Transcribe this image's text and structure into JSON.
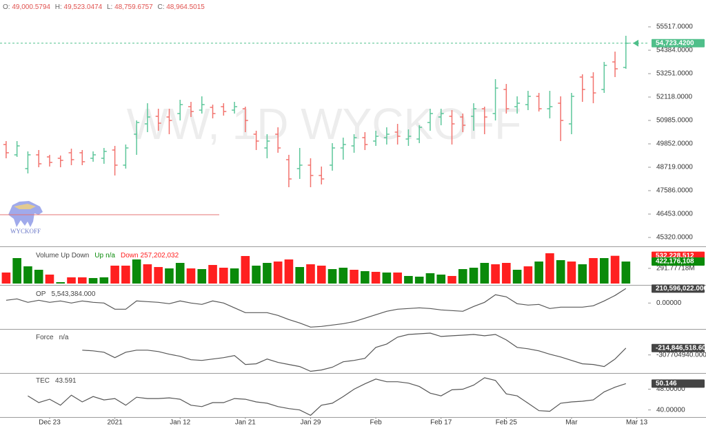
{
  "chart_data": [
    {
      "type": "ohlc",
      "header": [
        {
          "key": "O:",
          "value": {
            "value": 49000.5794,
            "label": "49,000.5794"
          }
        },
        {
          "key": "H:",
          "value": {
            "value": 49523.0474,
            "label": "49,523.0474"
          }
        },
        {
          "key": "L:",
          "value": {
            "value": 48759.6757,
            "label": "48,759.6757"
          }
        },
        {
          "key": "C:",
          "value": {
            "value": 48964.5015,
            "label": "48,964.5015"
          }
        }
      ],
      "watermark": "WW, 1D WYCKOFF",
      "logo_text": "WYCKOFF",
      "up_color": "#5cc69a",
      "down_color": "#f2726d",
      "xlim": [
        -0.564,
        59.04
      ],
      "ylim": [
        44988,
        56816
      ],
      "yticks": [
        {
          "value": 55517,
          "label": "55517.0000"
        },
        {
          "value": 54384,
          "label": "54384.0000"
        },
        {
          "value": 53251,
          "label": "53251.0000"
        },
        {
          "value": 52118,
          "label": "52118.0000"
        },
        {
          "value": 50985,
          "label": "50985.0000"
        },
        {
          "value": 49852,
          "label": "49852.0000"
        },
        {
          "value": 48719,
          "label": "48719.0000"
        },
        {
          "value": 47586,
          "label": "47586.0000"
        },
        {
          "value": 46453,
          "label": "46453.0000"
        },
        {
          "value": 45320,
          "label": "45320.0000"
        }
      ],
      "hlines": [
        {
          "value": 46420,
          "color": "#e57373"
        }
      ],
      "badges": [
        {
          "value": 54723.42,
          "label": "54,723.4200",
          "color": "#4fbf8a"
        }
      ],
      "open": [
        49819,
        49320,
        48653,
        49320,
        49220,
        49153,
        49420,
        49420,
        49153,
        49153,
        49553,
        48820,
        50319,
        50819,
        51185,
        51152,
        51319,
        51652,
        51485,
        51619,
        51652,
        51485,
        51552,
        50319,
        49653,
        50319,
        49086,
        48653,
        48820,
        48320,
        48820,
        49653,
        49753,
        50153,
        49986,
        50153,
        50419,
        50086,
        50086,
        50886,
        51152,
        51185,
        51152,
        51185,
        51552,
        51319,
        52485,
        51652,
        51752,
        52152,
        51552,
        51819,
        50819,
        53085,
        53085,
        52485,
        53818,
        53551
      ],
      "high": [
        49986,
        49986,
        49486,
        49553,
        49320,
        49286,
        49620,
        49553,
        49486,
        49653,
        49753,
        49819,
        50986,
        51819,
        51552,
        51552,
        51985,
        51885,
        52152,
        51752,
        51819,
        51885,
        51652,
        50486,
        50319,
        50653,
        49320,
        49653,
        49153,
        48753,
        49886,
        50153,
        50319,
        50419,
        50486,
        50653,
        50819,
        50552,
        50752,
        51552,
        51552,
        51485,
        51319,
        51819,
        51652,
        52985,
        52751,
        52152,
        52418,
        52318,
        52418,
        52152,
        52318,
        53218,
        53318,
        53818,
        54318,
        55084
      ],
      "low": [
        49153,
        49220,
        48420,
        48720,
        48753,
        48720,
        48820,
        48820,
        48986,
        48886,
        48320,
        48653,
        49320,
        50419,
        50486,
        50319,
        50985,
        51152,
        51319,
        51085,
        51219,
        51319,
        50419,
        49553,
        49153,
        49420,
        47753,
        48153,
        47753,
        47887,
        48553,
        49086,
        49420,
        49553,
        49753,
        49819,
        49819,
        49753,
        49886,
        50486,
        50752,
        49819,
        50419,
        50486,
        50319,
        50985,
        51319,
        51319,
        51485,
        51419,
        51085,
        49986,
        50319,
        51885,
        51819,
        52318,
        53085,
        53485
      ],
      "close": [
        49420,
        49753,
        49320,
        48886,
        48953,
        49053,
        49086,
        48986,
        49320,
        49486,
        48820,
        49653,
        50886,
        51152,
        50852,
        50985,
        51752,
        51419,
        51752,
        51319,
        51419,
        51652,
        50985,
        49986,
        49986,
        49653,
        48153,
        48820,
        48320,
        48153,
        49653,
        49819,
        50153,
        49819,
        50219,
        50319,
        50219,
        50219,
        50653,
        51319,
        51319,
        50819,
        50752,
        51552,
        51152,
        52552,
        51552,
        51819,
        52152,
        51552,
        51652,
        50985,
        52152,
        52485,
        52318,
        53651,
        53485,
        54723.42
      ]
    },
    {
      "type": "bar",
      "title": "Volume Up Down",
      "xlim": [
        -0.564,
        59.04
      ],
      "ylim": [
        0,
        660000000
      ],
      "yticks": [
        {
          "value": 291777180,
          "label": "291.77718M"
        }
      ],
      "badges": [
        {
          "value": 532228512,
          "label": "532,228,512",
          "color": "#ff2020"
        },
        {
          "value": 422176108,
          "label": "422,176,108",
          "color": "#0a8a0a"
        }
      ],
      "series": [
        {
          "name": "Up",
          "legend_value": "n/a",
          "color": "#0a8a0a",
          "values": [
            null,
            488400000,
            330000000,
            264000000,
            null,
            26400000,
            null,
            null,
            105600000,
            118800000,
            null,
            null,
            462000000,
            null,
            null,
            290400000,
            396000000,
            null,
            277200000,
            null,
            null,
            290400000,
            null,
            343200000,
            396000000,
            null,
            null,
            316800000,
            null,
            null,
            277200000,
            303600000,
            null,
            237600000,
            null,
            211200000,
            null,
            145200000,
            132000000,
            198000000,
            171600000,
            null,
            277200000,
            303600000,
            396000000,
            null,
            null,
            264000000,
            null,
            422400000,
            null,
            448800000,
            null,
            369600000,
            null,
            488400000,
            null,
            422176108
          ]
        },
        {
          "name": "Down",
          "legend_value": {
            "value": 257202032,
            "label": "257,202,032"
          },
          "color": "#ff2020",
          "values": [
            211200000,
            null,
            null,
            null,
            171600000,
            null,
            118800000,
            118800000,
            null,
            null,
            343200000,
            343200000,
            null,
            369600000,
            316800000,
            null,
            null,
            290400000,
            null,
            356400000,
            303600000,
            null,
            528000000,
            null,
            null,
            422400000,
            462000000,
            null,
            369600000,
            343200000,
            null,
            null,
            264000000,
            null,
            224400000,
            null,
            211200000,
            null,
            null,
            null,
            null,
            145200000,
            null,
            null,
            null,
            369600000,
            396000000,
            null,
            330000000,
            null,
            580800000,
            null,
            422400000,
            null,
            488400000,
            null,
            532228512,
            null
          ]
        }
      ]
    },
    {
      "type": "line",
      "title": "OP",
      "legend_value": {
        "value": 5543384,
        "label": "5,543,384.000"
      },
      "color": "#555555",
      "xlim": [
        -0.564,
        59.04
      ],
      "ylim": [
        -358000000,
        224000000
      ],
      "yticks": [
        {
          "value": 0,
          "label": "0.00000"
        }
      ],
      "badges": [
        {
          "value": 210596022,
          "label": "210,596,022.000",
          "color": "#444444"
        }
      ],
      "values": [
        40120000,
        60180000,
        10030000,
        40120000,
        10030000,
        30090000,
        0,
        30090000,
        10030000,
        0,
        -90270000,
        -90270000,
        30090000,
        20060000,
        10030000,
        -10030000,
        30090000,
        0,
        -20060000,
        30090000,
        0,
        -70210000,
        -140420000,
        -140420000,
        -140420000,
        -180540000,
        -240720000,
        -290870000,
        -351050000,
        -341020000,
        -320960000,
        -300900000,
        -270810000,
        -220660000,
        -170510000,
        -120360000,
        -90270000,
        -80240000,
        -70210000,
        -80240000,
        -100300000,
        -110330000,
        -120360000,
        -50150000,
        10030000,
        120360000,
        90270000,
        -10030000,
        -30090000,
        -20060000,
        -80240000,
        -60180000,
        -60180000,
        -60180000,
        -40120000,
        30090000,
        110330000,
        210596022
      ]
    },
    {
      "type": "line",
      "title": "Force",
      "legend_value": "n/a",
      "color": "#555555",
      "xlim": [
        -0.564,
        59.04
      ],
      "ylim": [
        -535000000,
        17400000
      ],
      "yticks": [
        {
          "value": -307704940,
          "label": "-307704940.0000"
        }
      ],
      "badges": [
        {
          "value": -214846518.6,
          "label": "-214,846,518.600",
          "color": "#444444"
        }
      ],
      "values": [
        null,
        null,
        null,
        null,
        null,
        null,
        null,
        -242720000,
        -252010000,
        -270590000,
        -344910000,
        -270590000,
        -242720000,
        -242720000,
        -261300000,
        -298460000,
        -326330000,
        -372780000,
        -382070000,
        -363490000,
        -344910000,
        -317040000,
        -437810000,
        -428520000,
        -363490000,
        -409940000,
        -437810000,
        -465680000,
        -530710000,
        -512130000,
        -474970000,
        -400650000,
        -382070000,
        -354200000,
        -205560000,
        -159110000,
        -66210000,
        -29050000,
        -19760000,
        -10470000,
        -56920000,
        -47630000,
        -38340000,
        -29050000,
        -47630000,
        -29050000,
        -103370000,
        -205560000,
        -224140000,
        -252010000,
        -298460000,
        -335620000,
        -382070000,
        -428520000,
        -437810000,
        -465680000,
        -363490000,
        -214846518.6
      ]
    },
    {
      "type": "line",
      "title": "TEC",
      "legend_value": 43.591,
      "color": "#555555",
      "xlim": [
        -0.564,
        59.04
      ],
      "ylim": [
        37.8,
        53.68
      ],
      "yticks": [
        {
          "value": 48,
          "label": "48.00000"
        },
        {
          "value": 40,
          "label": "40.00000"
        }
      ],
      "badges": [
        {
          "value": 50.146,
          "label": "50.146",
          "color": "#444444"
        }
      ],
      "xticks": [
        {
          "value": 4,
          "label": "Dec 23"
        },
        {
          "value": 10,
          "label": "2021"
        },
        {
          "value": 16,
          "label": "Jan 12"
        },
        {
          "value": 22,
          "label": "Jan 21"
        },
        {
          "value": 28,
          "label": "Jan 29"
        },
        {
          "value": 34,
          "label": "Feb"
        },
        {
          "value": 40,
          "label": "Feb 17"
        },
        {
          "value": 46,
          "label": "Feb 25"
        },
        {
          "value": 52,
          "label": "Mar"
        },
        {
          "value": 58,
          "label": "Mar 13"
        }
      ],
      "values": [
        null,
        null,
        45.42,
        42.84,
        44.13,
        41.81,
        45.68,
        43.1,
        45.16,
        43.87,
        44.39,
        41.81,
        44.9,
        44.39,
        44.39,
        44.65,
        44.13,
        41.81,
        41.29,
        42.84,
        42.84,
        44.39,
        44.13,
        43.1,
        42.58,
        41.29,
        40.52,
        40,
        37.94,
        41.81,
        42.58,
        45.16,
        48,
        50.06,
        51.87,
        50.84,
        50.84,
        50.32,
        49.03,
        46.45,
        45.42,
        47.74,
        48,
        49.55,
        52.39,
        51.35,
        46.19,
        45.42,
        42.58,
        39.74,
        39.49,
        42.58,
        43.1,
        43.36,
        43.87,
        46.97,
        48.77,
        50.146
      ]
    }
  ]
}
